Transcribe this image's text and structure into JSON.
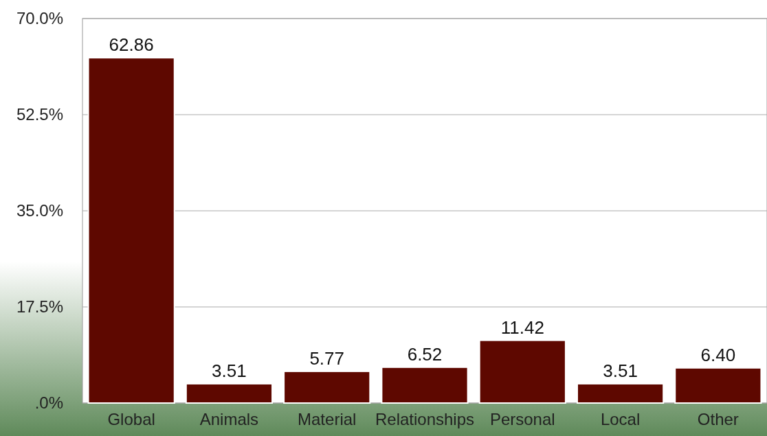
{
  "chart_data": {
    "type": "bar",
    "categories": [
      "Global",
      "Animals",
      "Material",
      "Relationships",
      "Personal",
      "Local",
      "Other"
    ],
    "values": [
      62.86,
      3.51,
      5.77,
      6.52,
      11.42,
      3.51,
      6.4
    ],
    "value_labels": [
      "62.86",
      "3.51",
      "5.77",
      "6.52",
      "11.42",
      "3.51",
      "6.40"
    ],
    "color": "#5e0800",
    "ylim": [
      0,
      70
    ],
    "yticks": [
      {
        "value": 0,
        "label": ".0%"
      },
      {
        "value": 17.5,
        "label": "17.5%"
      },
      {
        "value": 35,
        "label": "35.0%"
      },
      {
        "value": 52.5,
        "label": "52.5%"
      },
      {
        "value": 70,
        "label": "70.0%"
      }
    ],
    "grid": "y"
  }
}
